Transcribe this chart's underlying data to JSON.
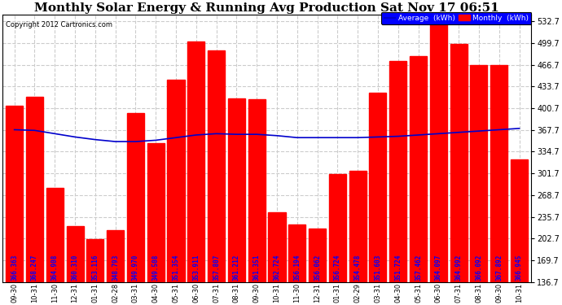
{
  "title": "Monthly Solar Energy & Running Avg Production Sat Nov 17 06:51",
  "copyright": "Copyright 2012 Cartronics.com",
  "bar_labels": [
    "09-30",
    "10-31",
    "11-30",
    "12-31",
    "01-31",
    "02-28",
    "03-31",
    "04-30",
    "05-31",
    "06-30",
    "07-31",
    "08-31",
    "09-30",
    "10-31",
    "11-30",
    "12-31",
    "01-31",
    "02-29",
    "03-31",
    "04-30",
    "05-31",
    "06-30",
    "07-31",
    "08-31",
    "09-30",
    "10-31"
  ],
  "bar_values": [
    405,
    418,
    280,
    222,
    202,
    215,
    393,
    348,
    444,
    502,
    488,
    415,
    414,
    243,
    224,
    218,
    300,
    306,
    424,
    472,
    480,
    535,
    499,
    466,
    466,
    323
  ],
  "avg_values": [
    368,
    367,
    362,
    357,
    353,
    350,
    350,
    352,
    356,
    360,
    362,
    361,
    361,
    359,
    356,
    356,
    356,
    356,
    357,
    358,
    360,
    362,
    364,
    366,
    368,
    370
  ],
  "bar_color": "#ff0000",
  "avg_color": "#0000cc",
  "background_color": "#ffffff",
  "grid_color": "#cccccc",
  "yticks": [
    136.7,
    169.7,
    202.7,
    235.7,
    268.7,
    301.7,
    334.7,
    367.7,
    400.7,
    433.7,
    466.7,
    499.7,
    532.7
  ],
  "ylim_min": 136.7,
  "ylim_max": 543.0,
  "bar_value_labels": [
    "366.363",
    "368.247",
    "364.908",
    "360.310",
    "353.116",
    "348.793",
    "349.970",
    "349.508",
    "351.354",
    "353.911",
    "357.807",
    "361.212",
    "361.351",
    "362.724",
    "356.194",
    "356.062",
    "356.724",
    "354.478",
    "351.603",
    "351.724",
    "357.462",
    "364.097",
    "364.992",
    "366.092",
    "367.892",
    "366.945"
  ],
  "title_fontsize": 11,
  "label_fontsize": 5.5,
  "tick_fontsize": 7,
  "xtick_fontsize": 6,
  "legend_avg_label": "Average  (kWh)",
  "legend_monthly_label": "Monthly  (kWh)"
}
